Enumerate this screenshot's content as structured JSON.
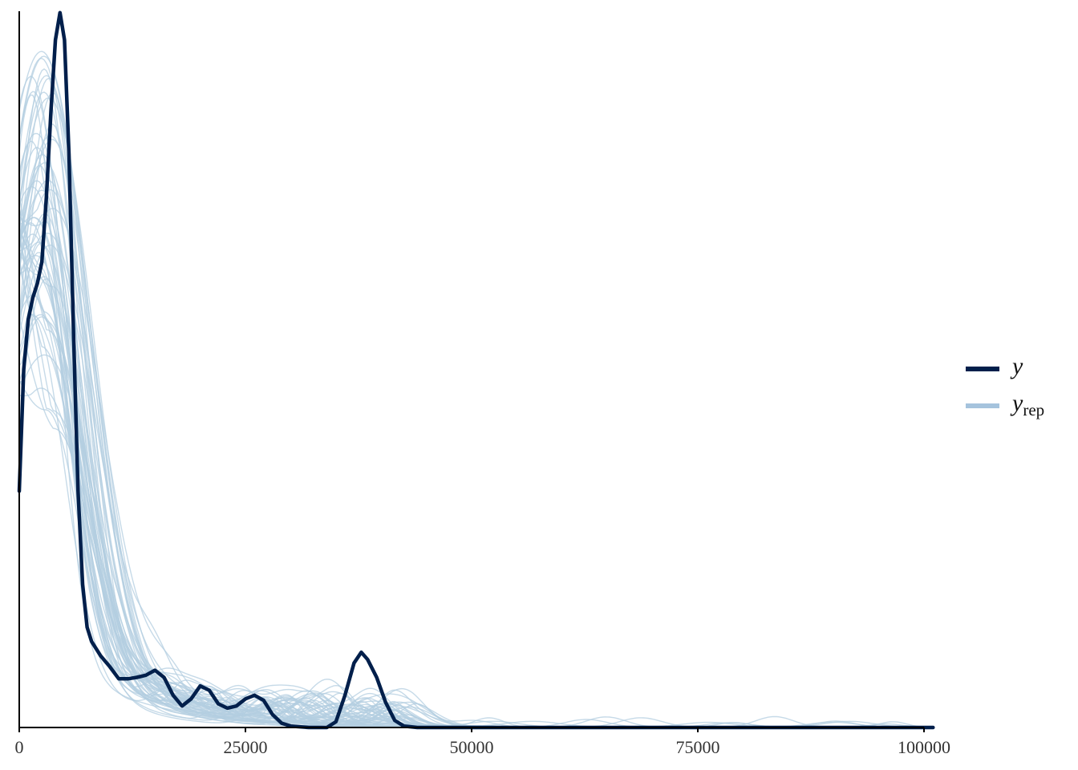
{
  "chart_data": {
    "type": "line",
    "title": "",
    "xlabel": "",
    "ylabel": "",
    "xlim": [
      0,
      100000
    ],
    "ylim": [
      0,
      1
    ],
    "y_axis_ticks_shown": false,
    "x_ticks": [
      0,
      25000,
      50000,
      75000,
      100000
    ],
    "x_tick_labels": [
      "0",
      "25000",
      "50000",
      "75000",
      "100000"
    ],
    "legend_position": "right",
    "colors": {
      "y": "#011f4b",
      "yrep": "#b3cde0",
      "yrep_legend": "#a5c3dd",
      "axis": "#000000"
    },
    "series": [
      {
        "name": "y",
        "legend_label": "y",
        "x": [
          0,
          500,
          1000,
          1500,
          2000,
          2500,
          3000,
          3500,
          4000,
          4500,
          5000,
          5500,
          6000,
          6500,
          7000,
          7500,
          8000,
          8500,
          9000,
          10000,
          11000,
          12000,
          13000,
          14000,
          15000,
          16000,
          17000,
          18000,
          19000,
          20000,
          21000,
          22000,
          23000,
          24000,
          25000,
          26000,
          27000,
          28000,
          29000,
          30000,
          32000,
          34000,
          35000,
          36000,
          37000,
          37800,
          38500,
          39500,
          40500,
          41500,
          42500,
          44000,
          50000,
          75000,
          101000
        ],
        "y": [
          0.33,
          0.5,
          0.57,
          0.6,
          0.62,
          0.65,
          0.74,
          0.86,
          0.96,
          0.998,
          0.96,
          0.8,
          0.55,
          0.33,
          0.2,
          0.14,
          0.12,
          0.11,
          0.1,
          0.085,
          0.068,
          0.068,
          0.07,
          0.073,
          0.08,
          0.07,
          0.045,
          0.03,
          0.04,
          0.058,
          0.052,
          0.033,
          0.027,
          0.03,
          0.04,
          0.045,
          0.038,
          0.018,
          0.006,
          0.002,
          0.0,
          0.0,
          0.008,
          0.045,
          0.09,
          0.105,
          0.095,
          0.07,
          0.035,
          0.01,
          0.002,
          0.0,
          0.0,
          0.0,
          0.0
        ]
      },
      {
        "name": "yrep",
        "legend_label": "y",
        "legend_subscript": "rep",
        "n_draws": 60,
        "description_x": [
          0,
          2000,
          6000,
          10000,
          20000,
          30000,
          50000,
          75000,
          100000
        ],
        "mean_y": [
          0.55,
          0.85,
          0.45,
          0.18,
          0.05,
          0.02,
          0.004,
          0.001,
          0.002
        ]
      }
    ]
  }
}
